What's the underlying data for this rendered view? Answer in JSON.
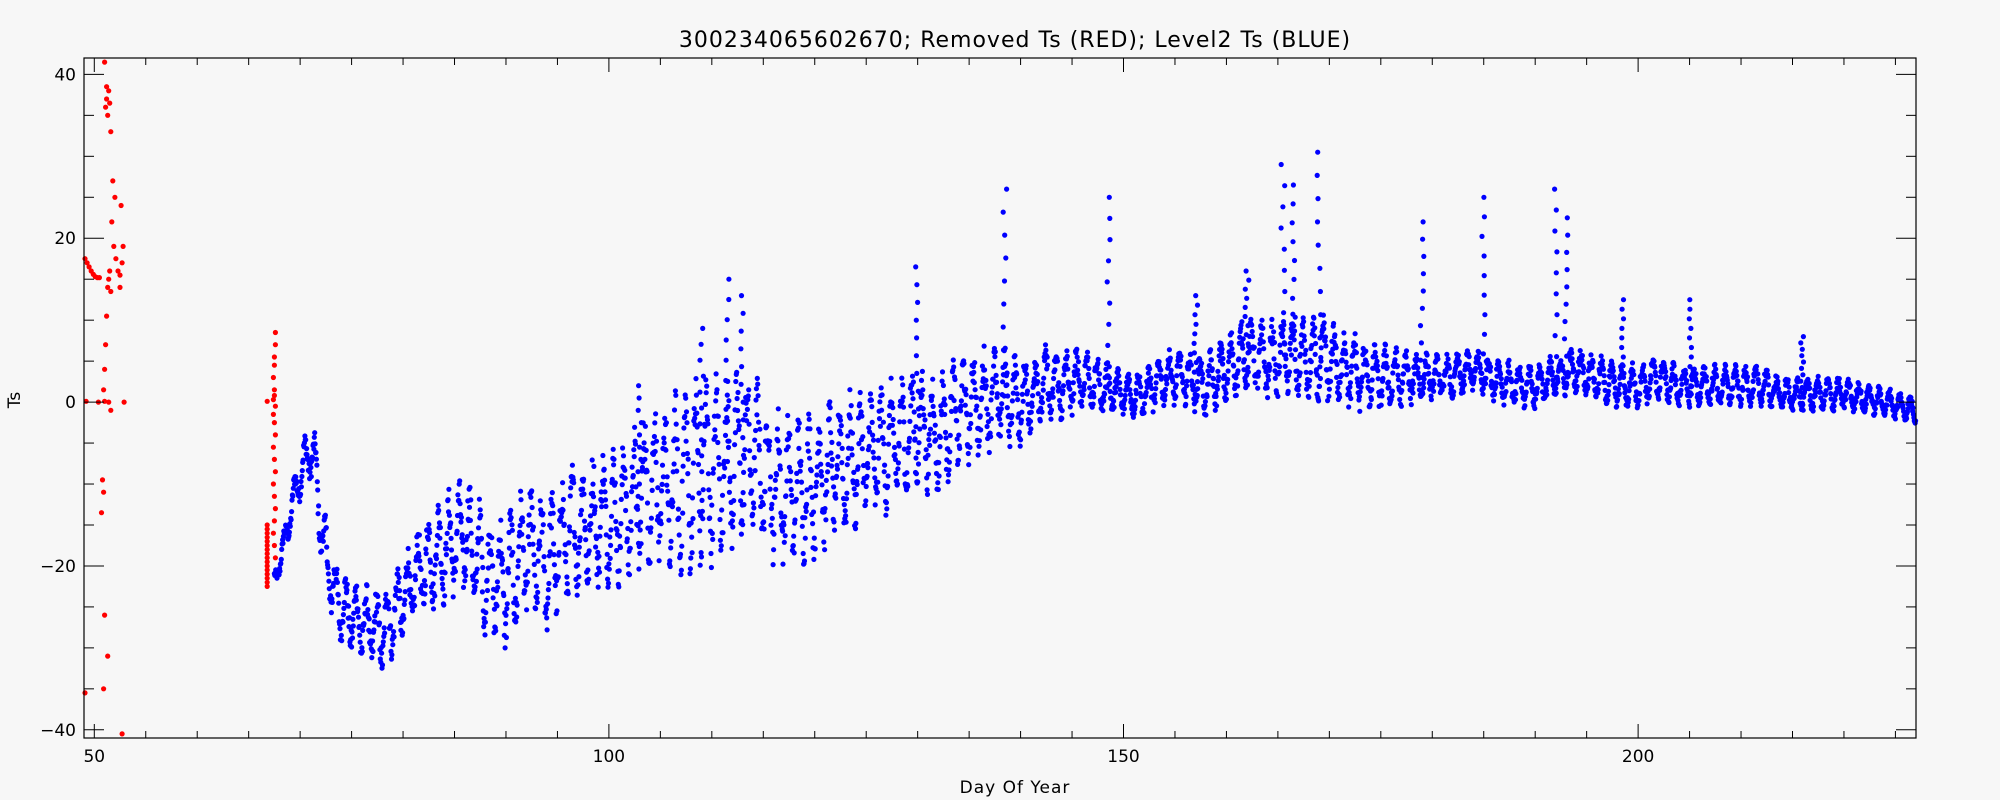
{
  "chart_data": {
    "type": "scatter",
    "title": "300234065602670; Removed Ts (RED); Level2 Ts (BLUE)",
    "xlabel": "Day Of Year",
    "ylabel": "Ts",
    "xlim": [
      49,
      227
    ],
    "ylim": [
      -41,
      42
    ],
    "xticks": [
      50,
      100,
      150,
      200
    ],
    "yticks": [
      -40,
      -20,
      0,
      20,
      40
    ],
    "xtick_labels": [
      "50",
      "100",
      "150",
      "200"
    ],
    "ytick_labels": [
      "−40",
      "−20",
      "0",
      "20",
      "40"
    ],
    "x_minor_step": 5,
    "y_minor_step": 5,
    "grid": false,
    "legend": "none",
    "series": [
      {
        "color": "#ff0000",
        "points": [
          [
            49.1,
            17.5
          ],
          [
            49.3,
            17.0
          ],
          [
            49.5,
            16.5
          ],
          [
            49.7,
            16.0
          ],
          [
            49.9,
            15.6
          ],
          [
            50.1,
            15.3
          ],
          [
            50.3,
            15.2
          ],
          [
            50.5,
            15.2
          ],
          [
            49.2,
            0.1
          ],
          [
            50.4,
            0.0
          ],
          [
            51.0,
            0.1
          ],
          [
            51.4,
            0.0
          ],
          [
            52.9,
            0.0
          ],
          [
            49.1,
            -35.5
          ],
          [
            51.0,
            41.5
          ],
          [
            51.1,
            36.0
          ],
          [
            51.2,
            38.5
          ],
          [
            51.3,
            35.0
          ],
          [
            51.4,
            38.0
          ],
          [
            51.2,
            37.0
          ],
          [
            51.5,
            36.5
          ],
          [
            51.6,
            33.0
          ],
          [
            51.8,
            27.0
          ],
          [
            52.0,
            25.0
          ],
          [
            51.7,
            22.0
          ],
          [
            51.9,
            19.0
          ],
          [
            52.1,
            17.5
          ],
          [
            52.3,
            16.0
          ],
          [
            52.5,
            14.0
          ],
          [
            52.6,
            24.0
          ],
          [
            52.8,
            19.0
          ],
          [
            52.7,
            17.0
          ],
          [
            52.5,
            15.5
          ],
          [
            51.5,
            16.0
          ],
          [
            51.4,
            15.0
          ],
          [
            51.3,
            14.0
          ],
          [
            51.6,
            13.5
          ],
          [
            51.2,
            10.5
          ],
          [
            51.1,
            7.0
          ],
          [
            51.0,
            4.0
          ],
          [
            50.9,
            1.5
          ],
          [
            51.6,
            -1.0
          ],
          [
            50.8,
            -9.5
          ],
          [
            50.9,
            -11.0
          ],
          [
            50.7,
            -13.5
          ],
          [
            51.0,
            -26.0
          ],
          [
            51.3,
            -31.0
          ],
          [
            50.9,
            -35.0
          ],
          [
            52.7,
            -40.5
          ],
          [
            66.8,
            0.1
          ],
          [
            67.4,
            0.3
          ],
          [
            67.6,
            8.5
          ],
          [
            67.6,
            7.0
          ],
          [
            67.5,
            5.5
          ],
          [
            67.5,
            4.5
          ],
          [
            67.4,
            3.0
          ],
          [
            67.5,
            1.5
          ],
          [
            67.5,
            0.8
          ],
          [
            67.6,
            -0.5
          ],
          [
            67.4,
            -1.5
          ],
          [
            67.5,
            -2.5
          ],
          [
            67.6,
            -4.0
          ],
          [
            67.4,
            -5.5
          ],
          [
            67.5,
            -7.0
          ],
          [
            67.6,
            -8.5
          ],
          [
            67.4,
            -10.0
          ],
          [
            67.5,
            -11.5
          ],
          [
            67.6,
            -13.0
          ],
          [
            67.5,
            -14.5
          ],
          [
            67.4,
            -16.0
          ],
          [
            67.5,
            -17.5
          ],
          [
            67.6,
            -19.0
          ],
          [
            66.8,
            -15.0
          ],
          [
            66.8,
            -15.5
          ],
          [
            66.8,
            -16.0
          ],
          [
            66.8,
            -16.5
          ],
          [
            66.8,
            -17.0
          ],
          [
            66.8,
            -17.5
          ],
          [
            66.8,
            -18.0
          ],
          [
            66.8,
            -18.5
          ],
          [
            66.8,
            -19.0
          ],
          [
            66.8,
            -19.5
          ],
          [
            66.8,
            -20.0
          ],
          [
            66.8,
            -20.5
          ],
          [
            66.8,
            -21.0
          ],
          [
            66.8,
            -21.5
          ],
          [
            66.8,
            -22.0
          ],
          [
            66.8,
            -22.5
          ]
        ]
      },
      {
        "color": "#0000ff",
        "profile": [
          [
            67.5,
            -22
          ],
          [
            68.5,
            -17
          ],
          [
            69.5,
            -11
          ],
          [
            70.5,
            -7
          ],
          [
            71,
            -6
          ],
          [
            71.5,
            -8
          ],
          [
            72,
            -15
          ],
          [
            73,
            -22
          ],
          [
            74,
            -25
          ],
          [
            76,
            -27
          ],
          [
            78,
            -28
          ],
          [
            80,
            -24
          ],
          [
            82,
            -20
          ],
          [
            84,
            -18
          ],
          [
            86,
            -16
          ],
          [
            88,
            -21
          ],
          [
            90,
            -22
          ],
          [
            92,
            -18
          ],
          [
            94,
            -20
          ],
          [
            96,
            -16
          ],
          [
            98,
            -15
          ],
          [
            100,
            -14
          ],
          [
            102,
            -13
          ],
          [
            104,
            -10
          ],
          [
            106,
            -11
          ],
          [
            108,
            -9
          ],
          [
            110,
            -8
          ],
          [
            112,
            -7
          ],
          [
            114,
            -6
          ],
          [
            116,
            -10
          ],
          [
            118,
            -11
          ],
          [
            120,
            -10
          ],
          [
            122,
            -8
          ],
          [
            124,
            -7
          ],
          [
            126,
            -6
          ],
          [
            128,
            -5
          ],
          [
            130,
            -3
          ],
          [
            132,
            -4
          ],
          [
            134,
            -1
          ],
          [
            136,
            0
          ],
          [
            138,
            1
          ],
          [
            140,
            0
          ],
          [
            142,
            2
          ],
          [
            144,
            2
          ],
          [
            146,
            3
          ],
          [
            148,
            2
          ],
          [
            150,
            1
          ],
          [
            152,
            1
          ],
          [
            154,
            3
          ],
          [
            156,
            3
          ],
          [
            158,
            2
          ],
          [
            160,
            4
          ],
          [
            162,
            6
          ],
          [
            164,
            5
          ],
          [
            166,
            6
          ],
          [
            168,
            5
          ],
          [
            170,
            5
          ],
          [
            172,
            4
          ],
          [
            174,
            3
          ],
          [
            176,
            3
          ],
          [
            178,
            3
          ],
          [
            180,
            3
          ],
          [
            182,
            3
          ],
          [
            184,
            4
          ],
          [
            186,
            3
          ],
          [
            188,
            2
          ],
          [
            190,
            2
          ],
          [
            192,
            3
          ],
          [
            194,
            4
          ],
          [
            196,
            3
          ],
          [
            198,
            2
          ],
          [
            200,
            2
          ],
          [
            202,
            3
          ],
          [
            204,
            2
          ],
          [
            206,
            2
          ],
          [
            208,
            2
          ],
          [
            210,
            2
          ],
          [
            212,
            2
          ],
          [
            214,
            1
          ],
          [
            216,
            1
          ],
          [
            218,
            1
          ],
          [
            220,
            1
          ],
          [
            222,
            0.5
          ],
          [
            224,
            0
          ],
          [
            227,
            -1
          ]
        ],
        "amplitude": [
          [
            67.5,
            1
          ],
          [
            72,
            3
          ],
          [
            80,
            4
          ],
          [
            90,
            6
          ],
          [
            100,
            6
          ],
          [
            108,
            9
          ],
          [
            115,
            7
          ],
          [
            125,
            6
          ],
          [
            135,
            5
          ],
          [
            145,
            3
          ],
          [
            150,
            2
          ],
          [
            160,
            3
          ],
          [
            170,
            4
          ],
          [
            180,
            2
          ],
          [
            190,
            2
          ],
          [
            200,
            2
          ],
          [
            210,
            1.8
          ],
          [
            220,
            1.5
          ],
          [
            227,
            1.2
          ]
        ],
        "spikes": [
          [
            103,
            2
          ],
          [
            109,
            9
          ],
          [
            111.5,
            15
          ],
          [
            113,
            13
          ],
          [
            130,
            16.5
          ],
          [
            138.5,
            26
          ],
          [
            148.5,
            25
          ],
          [
            157,
            13
          ],
          [
            162,
            16
          ],
          [
            165.5,
            29
          ],
          [
            166.5,
            26.5
          ],
          [
            169,
            30.5
          ],
          [
            179,
            22
          ],
          [
            185,
            25
          ],
          [
            192,
            26
          ],
          [
            193,
            22.5
          ],
          [
            198.5,
            12.5
          ],
          [
            205,
            12.5
          ],
          [
            216,
            8
          ]
        ]
      }
    ]
  }
}
